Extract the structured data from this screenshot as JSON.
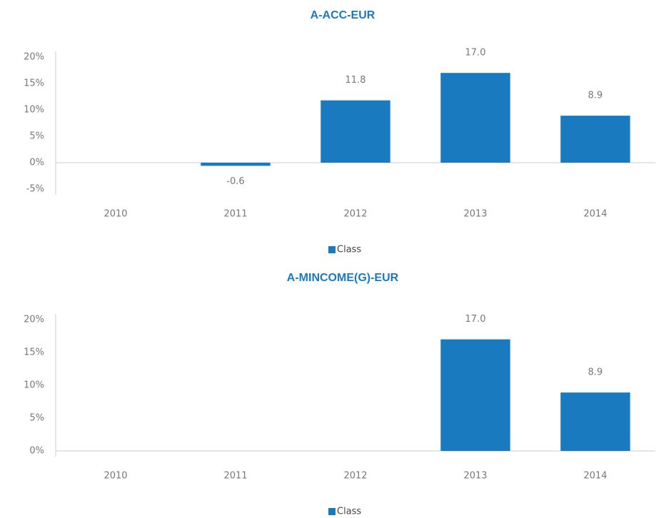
{
  "chart_data": [
    {
      "type": "bar",
      "title": "A-ACC-EUR",
      "categories": [
        "2010",
        "2011",
        "2012",
        "2013",
        "2014"
      ],
      "series": [
        {
          "name": "Class",
          "color": "#1a7abf",
          "values": [
            null,
            -0.6,
            11.8,
            17.0,
            8.9
          ],
          "value_labels": [
            null,
            "-0.6",
            "11.8",
            "17.0",
            "8.9"
          ]
        }
      ],
      "ylim": [
        -5,
        20
      ],
      "yticks": [
        {
          "value": -5,
          "label": "-5%"
        },
        {
          "value": 0,
          "label": "0%"
        },
        {
          "value": 5,
          "label": "5%"
        },
        {
          "value": 10,
          "label": "10%"
        },
        {
          "value": 15,
          "label": "15%"
        },
        {
          "value": 20,
          "label": "20%"
        }
      ],
      "legend": "bottom"
    },
    {
      "type": "bar",
      "title": "A-MINCOME(G)-EUR",
      "categories": [
        "2010",
        "2011",
        "2012",
        "2013",
        "2014"
      ],
      "series": [
        {
          "name": "Class",
          "color": "#1a7abf",
          "values": [
            null,
            null,
            null,
            17.0,
            8.9
          ],
          "value_labels": [
            null,
            null,
            null,
            "17.0",
            "8.9"
          ]
        }
      ],
      "ylim": [
        0,
        20
      ],
      "yticks": [
        {
          "value": 0,
          "label": "0%"
        },
        {
          "value": 5,
          "label": "5%"
        },
        {
          "value": 10,
          "label": "10%"
        },
        {
          "value": 15,
          "label": "15%"
        },
        {
          "value": 20,
          "label": "20%"
        }
      ],
      "legend": "bottom"
    }
  ]
}
